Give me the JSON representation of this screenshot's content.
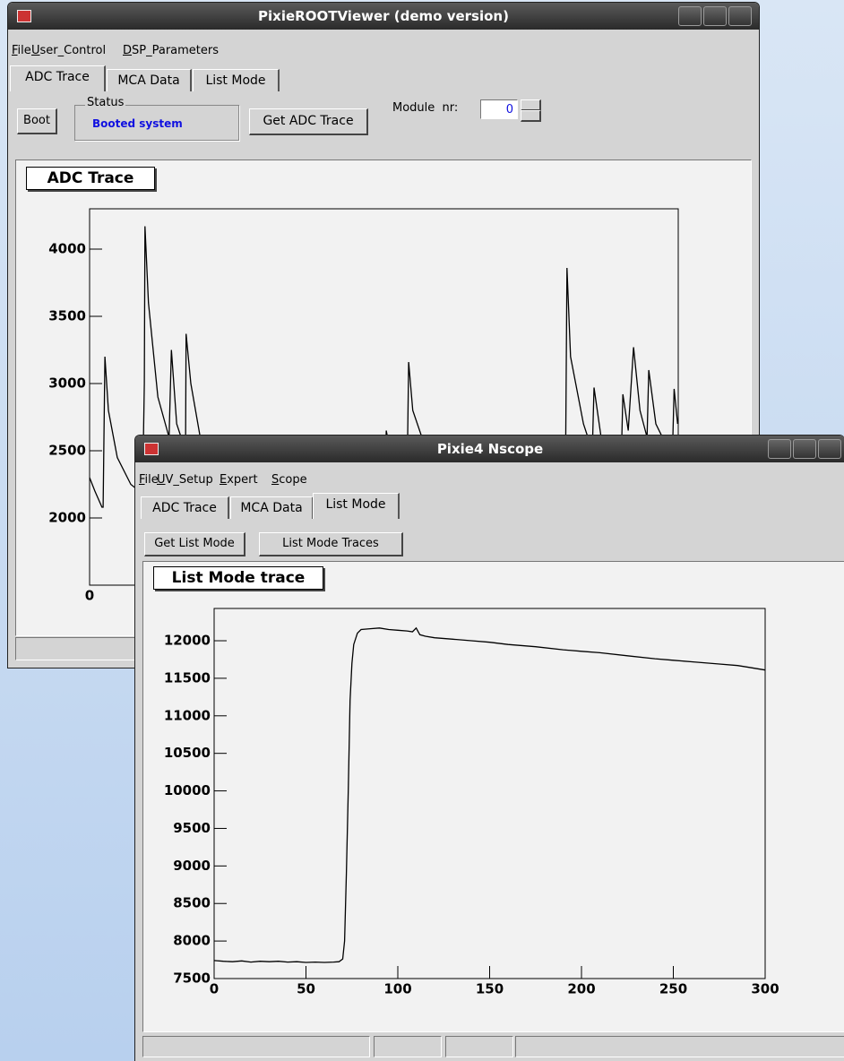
{
  "windows": [
    {
      "title": "PixieROOTViewer (demo version)",
      "menu": [
        "File",
        "User_Control",
        "DSP_Parameters"
      ],
      "tabs": [
        "ADC Trace",
        "MCA Data",
        "List Mode"
      ],
      "active_tab": 0,
      "buttons": [
        "Boot",
        "Get ADC Trace"
      ],
      "status": {
        "label": "Status",
        "text": "Booted system"
      },
      "module": {
        "label": "Module  nr:",
        "value": 0
      },
      "chart": {
        "type": "line",
        "title": "ADC Trace",
        "x": [
          0,
          9,
          21,
          23,
          26,
          32,
          47,
          70,
          90,
          93,
          94,
          100,
          116,
          135,
          139,
          148,
          163,
          164,
          172,
          192,
          230,
          306,
          458,
          501,
          504,
          519,
          539,
          542,
          549,
          580,
          641,
          763,
          808,
          811,
          817,
          839,
          854,
          857,
          869,
          903,
          906,
          915,
          924,
          935,
          947,
          950,
          962,
          990,
          993,
          999
        ],
        "values": [
          2300,
          2200,
          2080,
          2080,
          3200,
          2800,
          2450,
          2250,
          2180,
          3000,
          4170,
          3600,
          2900,
          2600,
          3250,
          2700,
          2500,
          3370,
          3000,
          2500,
          2250,
          2150,
          2100,
          2100,
          2650,
          2300,
          2150,
          3160,
          2800,
          2400,
          2200,
          2120,
          2100,
          3860,
          3200,
          2700,
          2500,
          2970,
          2600,
          2400,
          2920,
          2650,
          3270,
          2800,
          2600,
          3100,
          2700,
          2450,
          2960,
          2700
        ],
        "xlim": [
          0,
          1000
        ],
        "ylim": [
          1500,
          4300
        ],
        "xticks": [
          0
        ],
        "yticks": [
          2000,
          2500,
          3000,
          3500,
          4000
        ],
        "color": "#000000"
      }
    },
    {
      "title": "Pixie4 Nscope",
      "menu": [
        "File",
        "UV_Setup",
        "Expert",
        "Scope"
      ],
      "tabs": [
        "ADC Trace",
        "MCA Data",
        "List Mode"
      ],
      "active_tab": 2,
      "buttons": [
        "Get List Mode",
        "List Mode Traces"
      ],
      "chart": {
        "type": "line",
        "title": "List Mode trace",
        "x": [
          0,
          5,
          10,
          15,
          20,
          25,
          30,
          35,
          40,
          45,
          50,
          55,
          60,
          65,
          68,
          70,
          71,
          72,
          73,
          74,
          75,
          76,
          78,
          80,
          85,
          90,
          95,
          100,
          105,
          108,
          110,
          112,
          115,
          120,
          130,
          140,
          150,
          160,
          175,
          190,
          200,
          210,
          225,
          240,
          250,
          260,
          275,
          285,
          290,
          300
        ],
        "values": [
          7740,
          7730,
          7725,
          7735,
          7720,
          7730,
          7725,
          7730,
          7720,
          7725,
          7715,
          7720,
          7715,
          7720,
          7725,
          7760,
          8000,
          8900,
          10000,
          11200,
          11700,
          11950,
          12100,
          12150,
          12160,
          12170,
          12150,
          12140,
          12130,
          12120,
          12170,
          12080,
          12060,
          12040,
          12020,
          12000,
          11980,
          11950,
          11920,
          11880,
          11860,
          11840,
          11800,
          11760,
          11740,
          11720,
          11690,
          11670,
          11650,
          11610
        ],
        "xlim": [
          0,
          300
        ],
        "ylim": [
          7500,
          12430
        ],
        "xticks": [
          0,
          50,
          100,
          150,
          200,
          250,
          300
        ],
        "yticks": [
          7500,
          8000,
          8500,
          9000,
          9500,
          10000,
          10500,
          11000,
          11500,
          12000
        ],
        "color": "#000000"
      }
    }
  ]
}
